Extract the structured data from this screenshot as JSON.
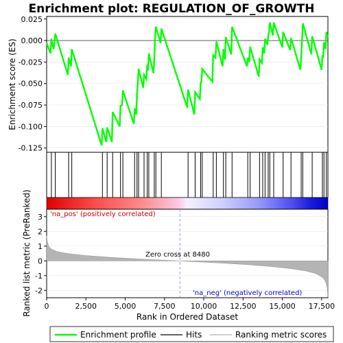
{
  "chart_data": {
    "type": "line",
    "title": "Enrichment plot: REGULATION_OF_GROWTH",
    "top_panel": {
      "ylabel": "Enrichment score (ES)",
      "ylim": [
        -0.13,
        0.028
      ],
      "yticks": [
        -0.125,
        -0.1,
        -0.075,
        -0.05,
        -0.025,
        0.0,
        0.025
      ],
      "ytick_labels": [
        "-0.125",
        "-0.100",
        "-0.075",
        "-0.050",
        "-0.025",
        "0.000",
        "0.025"
      ],
      "series": [
        {
          "name": "Enrichment profile",
          "color": "#00ff00",
          "x": [
            0,
            250,
            300,
            450,
            550,
            1350,
            1400,
            1550,
            1600,
            3500,
            3550,
            3800,
            3850,
            4150,
            4200,
            4650,
            4700,
            4800,
            4850,
            5550,
            5600,
            5700,
            5750,
            5800,
            5850,
            6150,
            6200,
            6350,
            6400,
            6450,
            6500,
            6800,
            6850,
            6900,
            6950,
            7250,
            7300,
            8950,
            9000,
            9400,
            9450,
            9750,
            9800,
            9850,
            9900,
            10550,
            10600,
            10750,
            10800,
            11200,
            11250,
            11350,
            11400,
            11750,
            11800,
            12750,
            12800,
            12900,
            12950,
            13500,
            13550,
            13700,
            13750,
            13850,
            13900,
            14050,
            14100,
            14150,
            14200,
            14400,
            14450,
            15000,
            15050,
            15500,
            15550,
            16150,
            16200,
            16250,
            16300,
            16850,
            16900,
            17500,
            17550,
            17600,
            17650,
            17750,
            17800,
            17900
          ],
          "y": [
            -0.003,
            -0.015,
            0.002,
            -0.01,
            0.008,
            -0.04,
            -0.02,
            -0.03,
            -0.01,
            -0.122,
            -0.102,
            -0.118,
            -0.101,
            -0.118,
            -0.083,
            -0.1,
            -0.076,
            -0.075,
            -0.058,
            -0.097,
            -0.079,
            -0.086,
            -0.063,
            -0.05,
            -0.033,
            -0.055,
            -0.04,
            -0.045,
            -0.028,
            -0.035,
            -0.015,
            -0.038,
            -0.02,
            0.0,
            0.016,
            -0.003,
            0.014,
            -0.078,
            -0.057,
            -0.086,
            -0.06,
            -0.068,
            -0.049,
            -0.048,
            -0.033,
            -0.048,
            -0.017,
            -0.02,
            -0.001,
            -0.03,
            -0.01,
            -0.022,
            0.004,
            -0.016,
            0.016,
            -0.03,
            -0.02,
            -0.025,
            -0.007,
            -0.042,
            -0.022,
            -0.026,
            -0.008,
            -0.015,
            0.002,
            -0.005,
            0.005,
            0.01,
            0.021,
            0.006,
            0.021,
            -0.008,
            0.01,
            -0.011,
            0.003,
            -0.034,
            -0.018,
            -0.002,
            0.02,
            -0.016,
            0.005,
            -0.034,
            -0.017,
            -0.02,
            -0.002,
            -0.01,
            0.01,
            0.003
          ]
        }
      ]
    },
    "hits_panel": {
      "legend_name": "Hits",
      "hit_positions": [
        300,
        550,
        1400,
        1600,
        3550,
        3850,
        4200,
        4700,
        4850,
        5600,
        5750,
        5850,
        6200,
        6400,
        6500,
        6850,
        6950,
        7300,
        9000,
        9450,
        9800,
        9900,
        10600,
        10800,
        11250,
        11400,
        11800,
        12800,
        12950,
        13550,
        13750,
        13900,
        14100,
        14200,
        14450,
        15050,
        15550,
        16200,
        16300,
        16900,
        17550,
        17650,
        17800
      ]
    },
    "bottom_panel": {
      "ylabel": "Ranked list metric (PreRanked)",
      "xlabel": "Rank in Ordered Dataset",
      "legend_name": "Ranking metric scores",
      "ylim": [
        -2.5,
        3.5
      ],
      "yticks": [
        -2,
        -1,
        0,
        1,
        2,
        3
      ],
      "ytick_labels": [
        "-2",
        "-1",
        "0",
        "1",
        "2",
        "3"
      ],
      "xlim": [
        0,
        17900
      ],
      "xticks": [
        0,
        2500,
        5000,
        7500,
        10000,
        12500,
        15000,
        17500
      ],
      "xtick_labels": [
        "0",
        "2,500",
        "5,000",
        "7,500",
        "10,000",
        "12,500",
        "15,000",
        "17,500"
      ],
      "metric_x": [
        0,
        30,
        80,
        150,
        300,
        600,
        1000,
        1500,
        2500,
        4000,
        6000,
        8480,
        11000,
        13000,
        14500,
        15500,
        16500,
        17000,
        17300,
        17600,
        17750,
        17850,
        17900
      ],
      "metric_y": [
        1.7,
        1.4,
        1.15,
        0.95,
        0.8,
        0.65,
        0.55,
        0.47,
        0.36,
        0.24,
        0.12,
        0.0,
        -0.14,
        -0.27,
        -0.4,
        -0.52,
        -0.68,
        -0.82,
        -0.96,
        -1.15,
        -1.4,
        -1.8,
        -2.45
      ],
      "zero_cross_rank": 8480,
      "zero_cross_label": "Zero cross at 8480",
      "pos_label": "'na_pos' (positively correlated)",
      "neg_label": "'na_neg' (negatively correlated)",
      "pos_label_color": "#cc0000",
      "neg_label_color": "#0000cc"
    },
    "legend": {
      "placement": "bottom",
      "entries": [
        "Enrichment profile",
        "Hits",
        "Ranking metric scores"
      ]
    }
  }
}
